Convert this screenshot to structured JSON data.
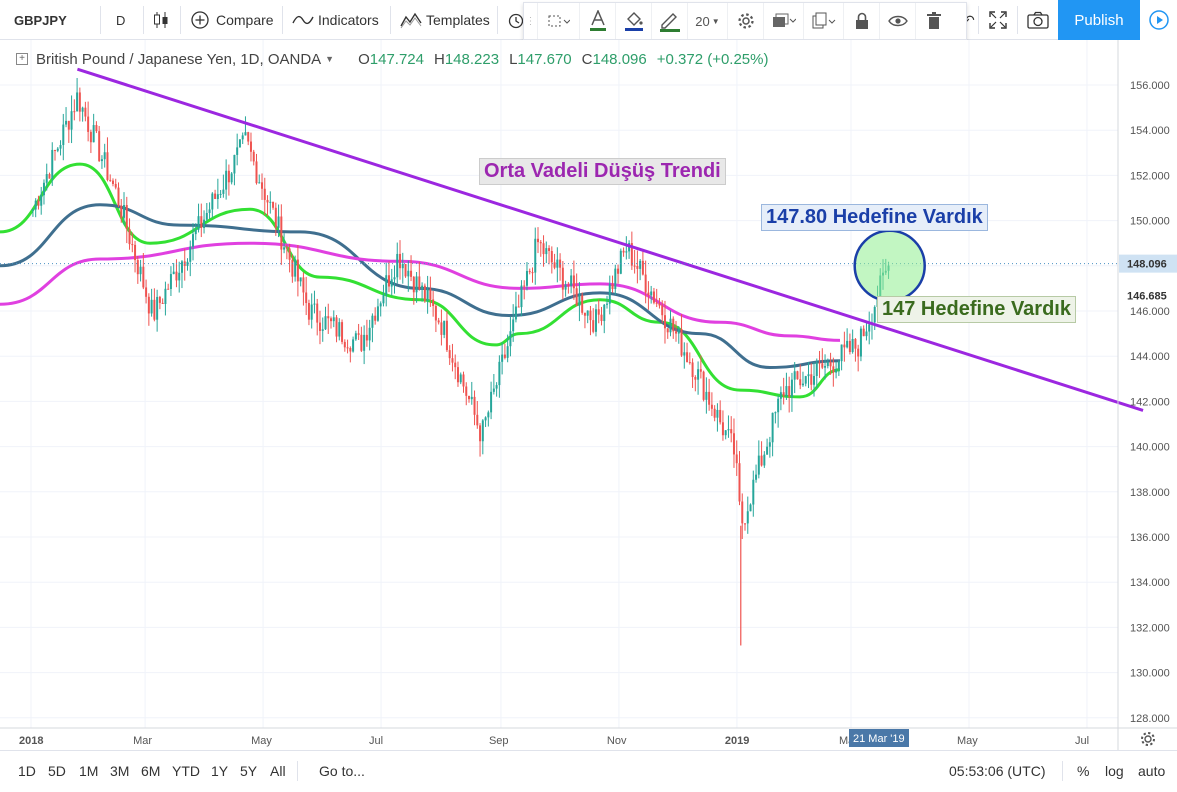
{
  "toolbar": {
    "symbol": "GBPJPY",
    "interval": "D",
    "compare_label": "Compare",
    "indicators_label": "Indicators",
    "templates_label": "Templates",
    "publish_label": "Publish",
    "drawing_line_width": "20"
  },
  "legend": {
    "title": "British Pound / Japanese Yen, 1D, OANDA",
    "open_label": "O",
    "open": "147.724",
    "high_label": "H",
    "high": "148.223",
    "low_label": "L",
    "low": "147.670",
    "close_label": "C",
    "close": "148.096",
    "change": "+0.372 (+0.25%)"
  },
  "annotations": {
    "trend_label": "Orta Vadeli Düşüş Trendi",
    "target1_label": "147.80 Hedefine Vardık",
    "target2_label": "147 Hedefine Vardık"
  },
  "bottom": {
    "ranges": [
      "1D",
      "5D",
      "1M",
      "3M",
      "6M",
      "YTD",
      "1Y",
      "5Y",
      "All"
    ],
    "goto_label": "Go to...",
    "clock": "05:53:06 (UTC)",
    "percent_label": "%",
    "log_label": "log",
    "auto_label": "auto"
  },
  "colors": {
    "up": "#26a69a",
    "down": "#ef5350",
    "ma_green": "#33e033",
    "ma_blue": "#3f6f8f",
    "ma_magenta": "#e040e0",
    "trendline": "#9c27e0",
    "accent": "#2196f3"
  },
  "chart_data": {
    "type": "candlestick",
    "title": "British Pound / Japanese Yen, 1D, OANDA",
    "x_axis": {
      "tick_labels": [
        "2018",
        "Mar",
        "May",
        "Jul",
        "Sep",
        "Nov",
        "2019",
        "Mar",
        "May",
        "Jul"
      ],
      "current_date_label": "21 Mar '19"
    },
    "y_axis": {
      "ylim": [
        127.4,
        157.3
      ],
      "tick_labels": [
        "156.000",
        "154.000",
        "152.000",
        "150.000",
        "148.000",
        "146.000",
        "144.000",
        "142.000",
        "140.000",
        "138.000",
        "136.000",
        "134.000",
        "132.000",
        "130.000",
        "128.000"
      ],
      "price_labels": [
        "148.096",
        "146.685"
      ]
    },
    "candles_ohlc_keypoints": [
      {
        "date": "2018-01-02",
        "close": 150.5
      },
      {
        "date": "2018-01-25",
        "close": 155.5
      },
      {
        "date": "2018-02-15",
        "close": 151.0
      },
      {
        "date": "2018-03-05",
        "close": 145.8
      },
      {
        "date": "2018-04-01",
        "close": 150.2
      },
      {
        "date": "2018-04-22",
        "close": 153.5
      },
      {
        "date": "2018-05-25",
        "close": 146.0
      },
      {
        "date": "2018-06-20",
        "close": 144.5
      },
      {
        "date": "2018-07-10",
        "close": 148.5
      },
      {
        "date": "2018-08-01",
        "close": 145.5
      },
      {
        "date": "2018-08-22",
        "close": 140.5
      },
      {
        "date": "2018-09-20",
        "close": 149.0
      },
      {
        "date": "2018-10-20",
        "close": 145.5
      },
      {
        "date": "2018-11-05",
        "close": 148.8
      },
      {
        "date": "2018-12-10",
        "close": 143.5
      },
      {
        "date": "2018-12-31",
        "close": 139.7
      },
      {
        "date": "2019-01-03",
        "close": 136.5,
        "low": 131.2
      },
      {
        "date": "2019-01-25",
        "close": 142.5
      },
      {
        "date": "2019-02-15",
        "close": 143.5
      },
      {
        "date": "2019-03-05",
        "close": 144.5
      },
      {
        "date": "2019-03-21",
        "close": 148.096
      }
    ],
    "series": [
      {
        "kind": "moving_average",
        "color": "#33e033",
        "keypoints": [
          [
            0,
            149.5
          ],
          [
            80,
            152.5
          ],
          [
            150,
            149.0
          ],
          [
            250,
            150.5
          ],
          [
            320,
            147.5
          ],
          [
            420,
            146.5
          ],
          [
            495,
            144.5
          ],
          [
            520,
            145.0
          ],
          [
            600,
            146.5
          ],
          [
            660,
            145.5
          ],
          [
            740,
            142.5
          ],
          [
            800,
            142.2
          ],
          [
            840,
            143.4
          ]
        ]
      },
      {
        "kind": "moving_average",
        "color": "#3f6f8f",
        "keypoints": [
          [
            0,
            148.0
          ],
          [
            100,
            150.7
          ],
          [
            180,
            149.8
          ],
          [
            300,
            149.5
          ],
          [
            420,
            147.0
          ],
          [
            510,
            145.8
          ],
          [
            600,
            146.8
          ],
          [
            700,
            145.0
          ],
          [
            770,
            143.5
          ],
          [
            840,
            143.8
          ]
        ]
      },
      {
        "kind": "moving_average",
        "color": "#e040e0",
        "keypoints": [
          [
            0,
            146.3
          ],
          [
            100,
            148.3
          ],
          [
            250,
            149.0
          ],
          [
            400,
            148.2
          ],
          [
            520,
            147.0
          ],
          [
            600,
            147.2
          ],
          [
            720,
            145.5
          ],
          [
            790,
            144.9
          ],
          [
            840,
            144.7
          ]
        ]
      }
    ],
    "trendline": {
      "start": {
        "date": "2018-01-25",
        "price": 156.7
      },
      "end": {
        "date": "2019-07-30",
        "price": 141.6
      }
    },
    "highlight_circle_price": 148.0,
    "grid": true,
    "legend_position": "top-left"
  }
}
